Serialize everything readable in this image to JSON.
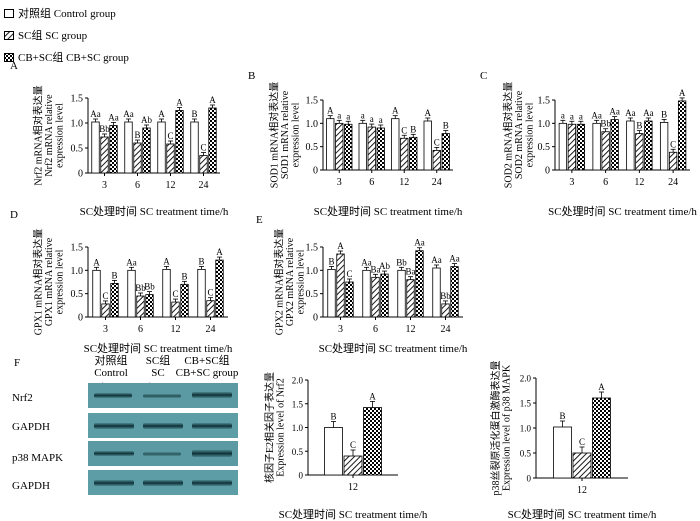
{
  "legend": {
    "items": [
      {
        "label": "对照组  Control group",
        "pattern": "white"
      },
      {
        "label": "SC组  SC group",
        "pattern": "hatch"
      },
      {
        "label": "CB+SC组  CB+SC group",
        "pattern": "check"
      }
    ]
  },
  "blot": {
    "panel_letter": "F",
    "col_headers": [
      {
        "cn": "对照组",
        "en": "Control group"
      },
      {
        "cn": "SC组",
        "en": "SC group"
      },
      {
        "cn": "CB+SC组",
        "en": "CB+SC group"
      }
    ],
    "row_labels": [
      "Nrf2",
      "GAPDH",
      "p38 MAPK",
      "GAPDH"
    ]
  },
  "chart_data": [
    {
      "type": "bar",
      "panel": "A",
      "categories": [
        "3",
        "6",
        "12",
        "24"
      ],
      "series": [
        {
          "name": "对照组 Control group",
          "values": [
            1.02,
            1.02,
            1.02,
            1.02
          ],
          "labels": [
            "Aa",
            "Aa",
            "A",
            "B"
          ]
        },
        {
          "name": "SC组 SC group",
          "values": [
            0.72,
            0.6,
            0.58,
            0.35
          ],
          "labels": [
            "Bb",
            "B",
            "C",
            "C"
          ]
        },
        {
          "name": "CB+SC组 CB+SC group",
          "values": [
            0.95,
            0.9,
            1.25,
            1.3
          ],
          "labels": [
            "Aa",
            "Ab",
            "A",
            "A"
          ]
        }
      ],
      "ylabel": [
        "Nrf2 mRNA相对表达量",
        "Nrf2 mRNA relative",
        "expression level"
      ],
      "xlabel": "SC处理时间  SC  treatment time/h",
      "ylim": [
        0,
        1.5
      ],
      "yticks": [
        "0",
        "0.5",
        "1.0",
        "1.5"
      ]
    },
    {
      "type": "bar",
      "panel": "B",
      "categories": [
        "3",
        "6",
        "12",
        "24"
      ],
      "series": [
        {
          "name": "对照组 Control group",
          "values": [
            1.1,
            1.0,
            1.1,
            1.05
          ],
          "labels": [
            "A",
            "a",
            "A",
            "A"
          ]
        },
        {
          "name": "SC组 SC group",
          "values": [
            1.0,
            0.92,
            0.68,
            0.42
          ],
          "labels": [
            "a",
            "a",
            "C",
            "C"
          ]
        },
        {
          "name": "CB+SC组 CB+SC group",
          "values": [
            0.98,
            0.9,
            0.7,
            0.78
          ],
          "labels": [
            "a",
            "a",
            "B",
            "B"
          ]
        }
      ],
      "ylabel": [
        "SOD1 mRNA相对表达量",
        "SOD1 mRNA relative",
        "expression level"
      ],
      "xlabel": "SC处理时间  SC  treatment time/h",
      "ylim": [
        0,
        1.5
      ],
      "yticks": [
        "0",
        "0.5",
        "1.0",
        "1.5"
      ]
    },
    {
      "type": "bar",
      "panel": "C",
      "categories": [
        "3",
        "6",
        "12",
        "24"
      ],
      "series": [
        {
          "name": "对照组 Control group",
          "values": [
            1.0,
            1.0,
            1.05,
            1.02
          ],
          "labels": [
            "a",
            "Aa",
            "Aa",
            "B"
          ]
        },
        {
          "name": "SC组 SC group",
          "values": [
            0.98,
            0.82,
            0.78,
            0.38
          ],
          "labels": [
            "a",
            "Bb",
            "B",
            "C"
          ]
        },
        {
          "name": "CB+SC组 CB+SC group",
          "values": [
            0.98,
            1.08,
            1.05,
            1.48
          ],
          "labels": [
            "a",
            "Aa",
            "Aa",
            "A"
          ]
        }
      ],
      "ylabel": [
        "SOD2 mRNA相对表达量",
        "SOD2 mRNA relative",
        "expression level"
      ],
      "xlabel": "SC处理时间  SC  treatment time/h",
      "ylim": [
        0,
        1.5
      ],
      "yticks": [
        "0",
        "0.5",
        "1.0",
        "1.5"
      ]
    },
    {
      "type": "bar",
      "panel": "D",
      "categories": [
        "3",
        "6",
        "12",
        "24"
      ],
      "series": [
        {
          "name": "对照组 Control group",
          "values": [
            1.0,
            1.0,
            1.02,
            1.02
          ],
          "labels": [
            "A",
            "Aa",
            "A",
            "B"
          ]
        },
        {
          "name": "SC组 SC group",
          "values": [
            0.28,
            0.45,
            0.32,
            0.35
          ],
          "labels": [
            "C",
            "Bb",
            "C",
            "C"
          ]
        },
        {
          "name": "CB+SC组 CB+SC group",
          "values": [
            0.72,
            0.48,
            0.7,
            1.22
          ],
          "labels": [
            "B",
            "Bb",
            "B",
            "A"
          ]
        }
      ],
      "ylabel": [
        "GPX1 mRNA相对表达量",
        "GPX1 mRNA relative",
        "expression level"
      ],
      "xlabel": "SC处理时间  SC  treatment time/h",
      "ylim": [
        0,
        1.5
      ],
      "yticks": [
        "0",
        "0.5",
        "1.0",
        "1.5"
      ]
    },
    {
      "type": "bar",
      "panel": "E",
      "categories": [
        "3",
        "6",
        "12",
        "24"
      ],
      "series": [
        {
          "name": "对照组 Control group",
          "values": [
            1.02,
            1.0,
            1.0,
            1.05
          ],
          "labels": [
            "B",
            "Aa",
            "Bb",
            "Aa"
          ]
        },
        {
          "name": "SC组 SC group",
          "values": [
            1.35,
            0.85,
            0.8,
            0.28
          ],
          "labels": [
            "A",
            "Ba",
            "Ba",
            "Bb"
          ]
        },
        {
          "name": "CB+SC组 CB+SC group",
          "values": [
            0.75,
            0.92,
            1.42,
            1.08
          ],
          "labels": [
            "C",
            "Ab",
            "Aa",
            "Aa"
          ]
        }
      ],
      "ylabel": [
        "GPX2 mRNA相对表达量",
        "GPX2 mRNA relative",
        "expression level"
      ],
      "xlabel": "SC处理时间  SC  treatment time/h",
      "ylim": [
        0,
        1.5
      ],
      "yticks": [
        "0",
        "0.5",
        "1.0",
        "1.5"
      ]
    },
    {
      "type": "bar",
      "panel": "F-Nrf2",
      "categories": [
        "12"
      ],
      "series": [
        {
          "name": "对照组 Control group",
          "values": [
            1.0
          ],
          "labels": [
            "B"
          ]
        },
        {
          "name": "SC组 SC group",
          "values": [
            0.4
          ],
          "labels": [
            "C"
          ]
        },
        {
          "name": "CB+SC组 CB+SC group",
          "values": [
            1.42
          ],
          "labels": [
            "A"
          ]
        }
      ],
      "ylabel": [
        "核因子E2相关因子表达量",
        "Expression level of Nrf2"
      ],
      "xlabel": "SC处理时间  SC  treatment time/h",
      "ylim": [
        0,
        2.0
      ],
      "yticks": [
        "0",
        "0.5",
        "1.0",
        "1.5",
        "2.0"
      ]
    },
    {
      "type": "bar",
      "panel": "F-p38",
      "categories": [
        "12"
      ],
      "series": [
        {
          "name": "对照组 Control group",
          "values": [
            1.02
          ],
          "labels": [
            "B"
          ]
        },
        {
          "name": "SC组 SC group",
          "values": [
            0.5
          ],
          "labels": [
            "C"
          ]
        },
        {
          "name": "CB+SC组 CB+SC group",
          "values": [
            1.6
          ],
          "labels": [
            "A"
          ]
        }
      ],
      "ylabel": [
        "p38丝裂原活化蛋白激酶表达量",
        "Expression level of p38 MAPK"
      ],
      "xlabel": "SC处理时间  SC  treatment time/h",
      "ylim": [
        0,
        2.0
      ],
      "yticks": [
        "0",
        "0.5",
        "1.0",
        "1.5",
        "2.0"
      ]
    }
  ]
}
